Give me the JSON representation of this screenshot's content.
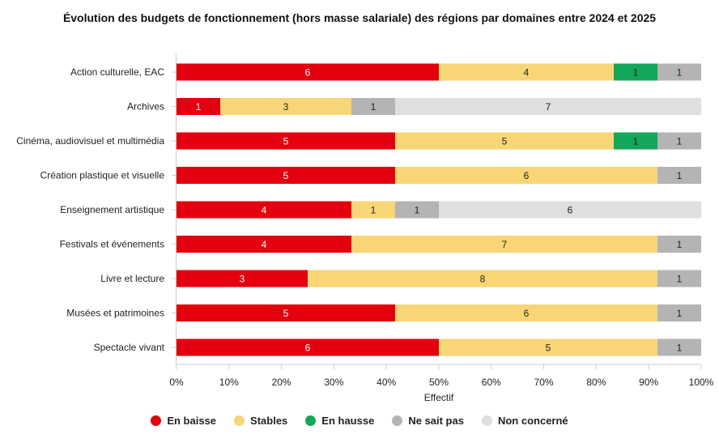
{
  "chart_data": {
    "type": "bar",
    "orientation": "horizontal",
    "stacked": "percent",
    "title": "Évolution des budgets de fonctionnement (hors masse salariale) des régions par domaines entre 2024 et 2025",
    "xlabel": "Effectif",
    "ylabel": "",
    "xlim": [
      0,
      100
    ],
    "x_ticks": [
      "0%",
      "10%",
      "20%",
      "30%",
      "40%",
      "50%",
      "60%",
      "70%",
      "80%",
      "90%",
      "100%"
    ],
    "legend_position": "bottom",
    "categories": [
      "Action culturelle, EAC",
      "Archives",
      "Cinéma, audiovisuel et multimédia",
      "Création plastique et visuelle",
      "Enseignement artistique",
      "Festivals et événements",
      "Livre et lecture",
      "Musées et patrimoines",
      "Spectacle vivant"
    ],
    "series": [
      {
        "name": "En baisse",
        "color": "#e3000f",
        "label_color": "#ffffff",
        "values": [
          6,
          1,
          5,
          5,
          4,
          4,
          3,
          5,
          6
        ]
      },
      {
        "name": "Stables",
        "color": "#f9d675",
        "label_color": "#222222",
        "values": [
          4,
          3,
          5,
          6,
          1,
          7,
          8,
          6,
          5
        ]
      },
      {
        "name": "En hausse",
        "color": "#14a65a",
        "label_color": "#222222",
        "values": [
          1,
          0,
          1,
          0,
          0,
          0,
          0,
          0,
          0
        ]
      },
      {
        "name": "Ne sait pas",
        "color": "#b4b4b4",
        "label_color": "#222222",
        "values": [
          1,
          1,
          1,
          1,
          1,
          1,
          1,
          1,
          1
        ]
      },
      {
        "name": "Non concerné",
        "color": "#e0dfdf",
        "label_color": "#222222",
        "values": [
          0,
          7,
          0,
          0,
          6,
          0,
          0,
          0,
          0
        ]
      }
    ]
  }
}
